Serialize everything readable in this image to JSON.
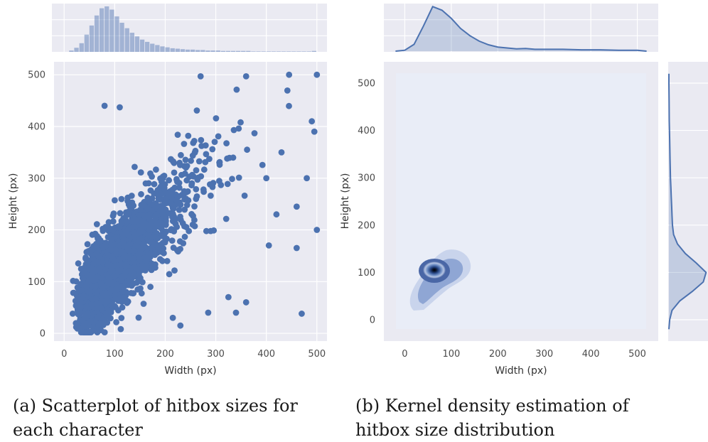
{
  "figure": {
    "caption_a": "(a) Scatterplot of hitbox sizes for each character",
    "caption_b": "(b) Kernel density estimation of hitbox size distribution",
    "colors": {
      "panel_bg": "#eaeaf2",
      "grid": "#ffffff",
      "series": "#4c72b0",
      "density_dark": "#000000"
    }
  },
  "chart_data": [
    {
      "type": "scatter",
      "panel": "a",
      "xlabel": "Width (px)",
      "ylabel": "Height (px)",
      "xlim": [
        -20,
        520
      ],
      "ylim": [
        -15,
        525
      ],
      "xticks": [
        0,
        100,
        200,
        300,
        400,
        500
      ],
      "yticks": [
        0,
        100,
        200,
        300,
        400,
        500
      ],
      "grid": true,
      "notes_visible": "dense cloud concentrated near (60-150, 60-180)",
      "outliers": [
        {
          "x": 80,
          "y": 440
        },
        {
          "x": 110,
          "y": 437
        },
        {
          "x": 270,
          "y": 497
        },
        {
          "x": 360,
          "y": 497
        },
        {
          "x": 445,
          "y": 500
        },
        {
          "x": 500,
          "y": 500
        },
        {
          "x": 215,
          "y": 30
        },
        {
          "x": 230,
          "y": 15
        },
        {
          "x": 285,
          "y": 40
        },
        {
          "x": 340,
          "y": 40
        },
        {
          "x": 470,
          "y": 38
        },
        {
          "x": 360,
          "y": 60
        },
        {
          "x": 325,
          "y": 70
        },
        {
          "x": 500,
          "y": 200
        },
        {
          "x": 460,
          "y": 165
        },
        {
          "x": 405,
          "y": 170
        },
        {
          "x": 495,
          "y": 390
        },
        {
          "x": 490,
          "y": 410
        },
        {
          "x": 480,
          "y": 300
        },
        {
          "x": 430,
          "y": 350
        },
        {
          "x": 400,
          "y": 300
        },
        {
          "x": 420,
          "y": 230
        },
        {
          "x": 460,
          "y": 245
        }
      ]
    },
    {
      "type": "histogram",
      "panel": "a-top-marginal",
      "variable": "Width (px)",
      "bin_width": 10,
      "bins_start": 10,
      "heights": [
        0.03,
        0.09,
        0.19,
        0.38,
        0.58,
        0.8,
        0.96,
        1.0,
        0.93,
        0.78,
        0.64,
        0.52,
        0.42,
        0.34,
        0.27,
        0.22,
        0.18,
        0.15,
        0.12,
        0.1,
        0.08,
        0.07,
        0.06,
        0.05,
        0.05,
        0.04,
        0.04,
        0.03,
        0.03,
        0.03,
        0.02,
        0.02,
        0.02,
        0.02,
        0.02,
        0.02,
        0.01,
        0.01,
        0.01,
        0.01,
        0.01,
        0.01,
        0.01,
        0.01,
        0.01,
        0.01,
        0.01,
        0.01,
        0.02
      ]
    },
    {
      "type": "heatmap",
      "panel": "b",
      "subtype": "kde",
      "xlabel": "Width (px)",
      "ylabel": "Height (px)",
      "xlim": [
        -45,
        545
      ],
      "ylim": [
        -45,
        545
      ],
      "xticks": [
        0,
        100,
        200,
        300,
        400,
        500
      ],
      "yticks": [
        0,
        100,
        200,
        300,
        400,
        500
      ],
      "grid": false,
      "mode": {
        "x": 62,
        "y": 108
      },
      "support_x": [
        -20,
        520
      ],
      "support_y": [
        -20,
        520
      ]
    },
    {
      "type": "area",
      "panel": "b-top-marginal",
      "variable": "Width (px)",
      "x": [
        -20,
        0,
        20,
        40,
        60,
        80,
        100,
        120,
        140,
        160,
        180,
        200,
        220,
        240,
        260,
        280,
        300,
        340,
        380,
        420,
        460,
        500,
        520
      ],
      "density": [
        0.0,
        0.02,
        0.15,
        0.55,
        0.98,
        0.9,
        0.72,
        0.5,
        0.34,
        0.22,
        0.14,
        0.09,
        0.07,
        0.05,
        0.06,
        0.04,
        0.04,
        0.04,
        0.03,
        0.03,
        0.02,
        0.02,
        0.0
      ]
    },
    {
      "type": "area",
      "panel": "b-right-marginal",
      "variable": "Height (px)",
      "y": [
        -20,
        0,
        20,
        40,
        60,
        80,
        100,
        120,
        140,
        160,
        180,
        200,
        220,
        240,
        260,
        280,
        300,
        340,
        380,
        420,
        460,
        500,
        520
      ],
      "density": [
        0.0,
        0.02,
        0.08,
        0.28,
        0.6,
        0.88,
        0.95,
        0.7,
        0.42,
        0.22,
        0.12,
        0.09,
        0.08,
        0.07,
        0.06,
        0.05,
        0.04,
        0.03,
        0.02,
        0.01,
        0.005,
        0.0,
        0.0
      ]
    }
  ]
}
